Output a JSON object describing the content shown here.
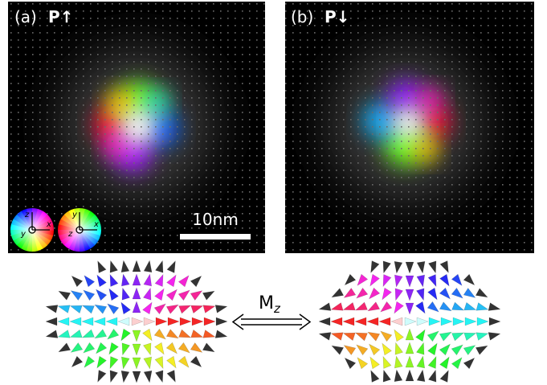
{
  "panels": [
    {
      "label": "(a)",
      "title": "P↑"
    },
    {
      "label": "(b)",
      "title": "P↓"
    }
  ],
  "scale_bar": "10nm",
  "legend_axes": [
    {
      "up": "z",
      "right": "x",
      "center": "y"
    },
    {
      "up": "y",
      "right": "x",
      "center": "z"
    }
  ],
  "operator": {
    "symbol": "M",
    "subscript": "z"
  }
}
